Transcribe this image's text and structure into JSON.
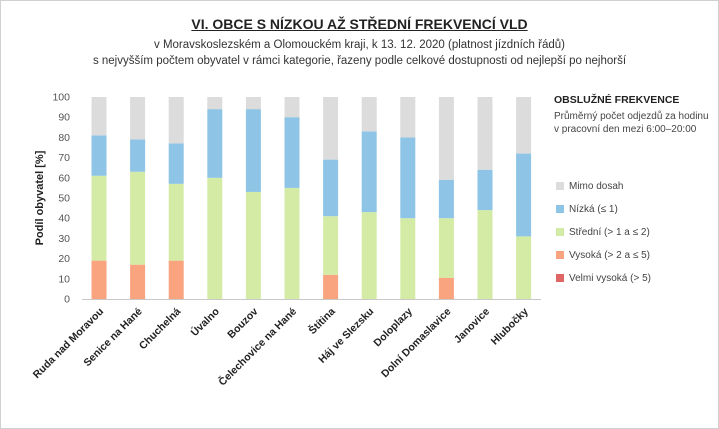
{
  "title": "VI.  OBCE S NÍZKOU AŽ STŘEDNÍ FREKVENCÍ VLD",
  "subtitle1": "v Moravskoslezském a Olomouckém  kraji, k 13. 12. 2020 (platnost jízdních řádů)",
  "subtitle2": "s nejvyšším počtem  obyvatel v rámci kategorie, řazeny podle celkové dostupnosti od nejlepší po nejhorší",
  "legend": {
    "heading": "OBSLUŽNÉ  FREKVENCE",
    "subheading": "Průměrný počet odjezdů za hodinu v pracovní den mezi 6:00–20:00"
  },
  "chart_data": {
    "type": "bar",
    "stacked": true,
    "ylabel": "Podíl obyvatel [%]",
    "xlabel": "",
    "ylim": [
      0,
      100
    ],
    "yticks": [
      0,
      10,
      20,
      30,
      40,
      50,
      60,
      70,
      80,
      90,
      100
    ],
    "grid": false,
    "legend_position": "right",
    "categories": [
      "Ruda nad Moravou",
      "Senice na Hané",
      "Chuchelná",
      "Úvalno",
      "Bouzov",
      "Čelechovice na Hané",
      "Štítina",
      "Háj ve Slezsku",
      "Doloplazy",
      "Dolní Domaslavice",
      "Janovice",
      "Hlubočky"
    ],
    "series": [
      {
        "name": "Velmi vysoká (> 5)",
        "color": "#e06666",
        "values": [
          0,
          0,
          0,
          0,
          0,
          0,
          0,
          0,
          0,
          0,
          0,
          0
        ]
      },
      {
        "name": "Vysoká (> 2 a ≤ 5)",
        "color": "#f9a47e",
        "values": [
          19,
          17,
          19,
          0,
          0,
          0,
          12,
          0,
          0,
          10.5,
          0,
          0
        ]
      },
      {
        "name": "Střední (> 1 a ≤ 2)",
        "color": "#d4eba5",
        "values": [
          42,
          46,
          38,
          60,
          53,
          55,
          29,
          43,
          40,
          29.5,
          44,
          31
        ]
      },
      {
        "name": "Nízká (≤ 1)",
        "color": "#8ec4e6",
        "values": [
          20,
          16,
          20,
          34,
          41,
          35,
          28,
          40,
          40,
          19,
          20,
          41
        ]
      },
      {
        "name": "Mimo dosah",
        "color": "#dcdcdc",
        "values": [
          19,
          21,
          23,
          6,
          6,
          10,
          31,
          17,
          20,
          41,
          36,
          28
        ]
      }
    ]
  }
}
